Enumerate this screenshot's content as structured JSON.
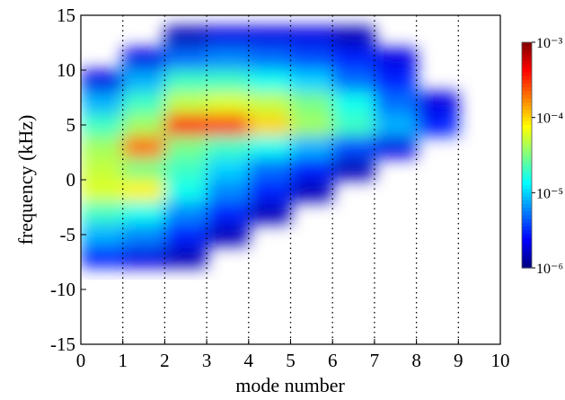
{
  "chart_data": {
    "type": "heatmap",
    "x_label": "mode number",
    "y_label": "frequency (kHz)",
    "xlim": [
      0,
      10
    ],
    "ylim": [
      -15,
      15
    ],
    "xticks": [
      0,
      1,
      2,
      3,
      4,
      5,
      6,
      7,
      8,
      9,
      10
    ],
    "yticks": [
      -15,
      -10,
      -5,
      0,
      5,
      10,
      15
    ],
    "xgrid": true,
    "x_edges": [
      0,
      1,
      2,
      3,
      4,
      5,
      6,
      7,
      8,
      9
    ],
    "y_edges": [
      -8,
      -6,
      -4,
      -2,
      0,
      2,
      4,
      6,
      8,
      10,
      12,
      14
    ],
    "z": [
      [
        3e-06,
        2e-06,
        1.5e-06,
        null,
        null,
        null,
        null,
        null,
        null
      ],
      [
        8e-06,
        6e-06,
        3e-06,
        1.5e-06,
        null,
        null,
        null,
        null,
        null
      ],
      [
        2e-05,
        1.5e-05,
        6e-06,
        3e-06,
        1.5e-06,
        null,
        null,
        null,
        null
      ],
      [
        6e-05,
        8e-05,
        1.5e-05,
        6e-06,
        3e-06,
        1.5e-06,
        null,
        null,
        null
      ],
      [
        5e-05,
        3e-05,
        2e-05,
        1e-05,
        5e-06,
        3e-06,
        1.5e-06,
        null,
        null
      ],
      [
        4e-05,
        0.0002,
        3e-05,
        2e-05,
        1.5e-05,
        8e-06,
        4e-06,
        2e-06,
        null
      ],
      [
        2e-05,
        4e-05,
        0.0004,
        0.0003,
        0.0001,
        4e-05,
        2e-05,
        8e-06,
        3e-06
      ],
      [
        8e-06,
        2e-05,
        5e-05,
        6e-05,
        5e-05,
        3e-05,
        1.5e-05,
        5e-06,
        2e-06
      ],
      [
        2e-06,
        8e-06,
        2e-05,
        2e-05,
        1.5e-05,
        1e-05,
        5e-06,
        3e-06,
        null
      ],
      [
        null,
        2e-06,
        5e-06,
        6e-06,
        5e-06,
        4e-06,
        3e-06,
        2e-06,
        null
      ],
      [
        null,
        null,
        1.5e-06,
        2e-06,
        2e-06,
        2e-06,
        1.5e-06,
        null,
        null
      ]
    ],
    "colormap": "jet",
    "clim": [
      1e-06,
      0.001
    ],
    "clog": true,
    "cticks": [
      {
        "value": 0.001,
        "label": "10⁻³"
      },
      {
        "value": 0.0001,
        "label": "10⁻⁴"
      },
      {
        "value": 1e-05,
        "label": "10⁻⁵"
      },
      {
        "value": 1e-06,
        "label": "10⁻⁶"
      }
    ]
  }
}
